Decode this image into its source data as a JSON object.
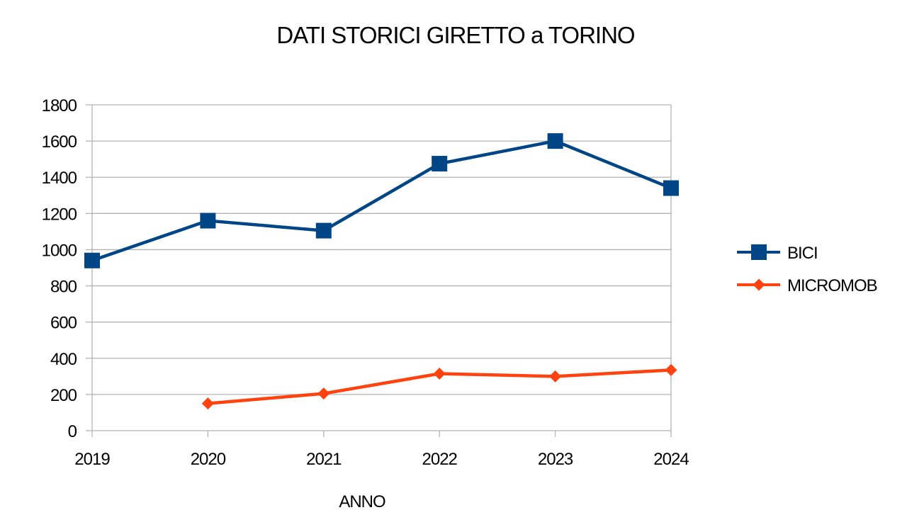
{
  "chart_data": {
    "type": "line",
    "title": "DATI STORICI GIRETTO a TORINO",
    "xlabel": "ANNO",
    "ylabel": "",
    "categories": [
      "2019",
      "2020",
      "2021",
      "2022",
      "2023",
      "2024"
    ],
    "ylim": [
      0,
      1800
    ],
    "yticks": [
      0,
      200,
      400,
      600,
      800,
      1000,
      1200,
      1400,
      1600,
      1800
    ],
    "grid": true,
    "legend_position": "right",
    "series": [
      {
        "name": "BICI",
        "values": [
          940,
          1160,
          1105,
          1475,
          1600,
          1340
        ],
        "color": "#004586",
        "marker": "square"
      },
      {
        "name": "MICROMOB",
        "values": [
          null,
          150,
          205,
          315,
          300,
          335
        ],
        "color": "#ff420e",
        "marker": "diamond"
      }
    ]
  }
}
